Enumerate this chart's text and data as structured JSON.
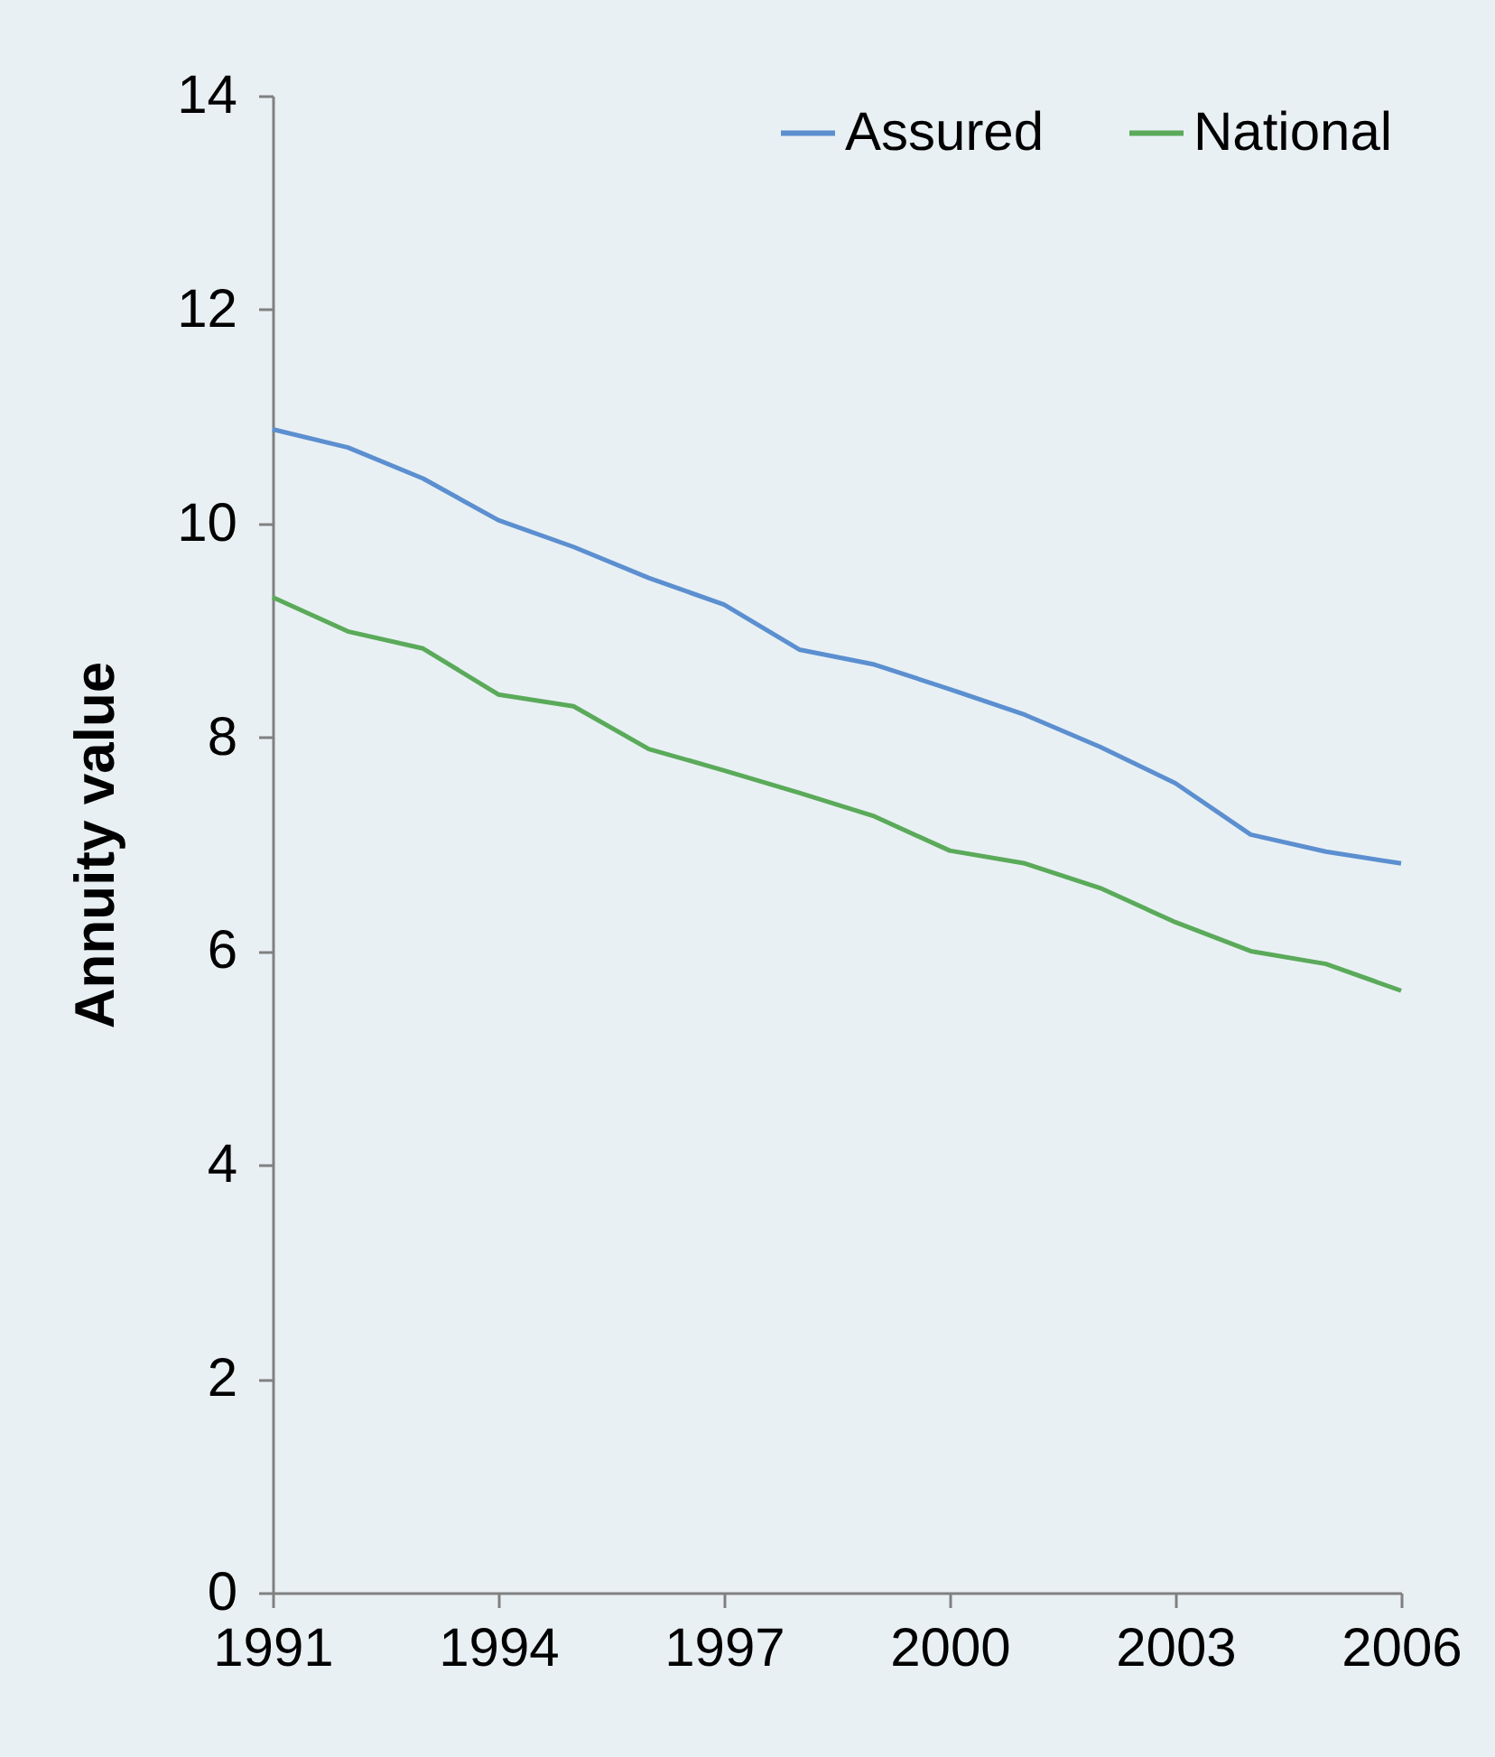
{
  "chart_data": {
    "type": "line",
    "ylabel": "Annuity value",
    "x": [
      1991,
      1992,
      1993,
      1994,
      1995,
      1996,
      1997,
      1998,
      1999,
      2000,
      2001,
      2002,
      2003,
      2004,
      2005,
      2006
    ],
    "series": [
      {
        "name": "Assured",
        "color": "#5b8fd0",
        "values": [
          10.88,
          10.71,
          10.42,
          10.03,
          9.78,
          9.49,
          9.24,
          8.82,
          8.68,
          8.45,
          8.21,
          7.91,
          7.57,
          7.09,
          6.93,
          6.82
        ]
      },
      {
        "name": "National",
        "color": "#5aaa5a",
        "values": [
          9.31,
          8.99,
          8.83,
          8.4,
          8.29,
          7.89,
          7.69,
          7.48,
          7.26,
          6.94,
          6.82,
          6.59,
          6.27,
          6.0,
          5.88,
          5.63
        ]
      }
    ],
    "xlim": [
      1991,
      2006
    ],
    "xticks": [
      1991,
      1994,
      1997,
      2000,
      2003,
      2006
    ],
    "ylim": [
      0,
      14
    ],
    "yticks": [
      0,
      2,
      4,
      6,
      8,
      10,
      12,
      14
    ],
    "grid": false,
    "legend": "top right",
    "marker": "none",
    "line_style": "solid"
  }
}
